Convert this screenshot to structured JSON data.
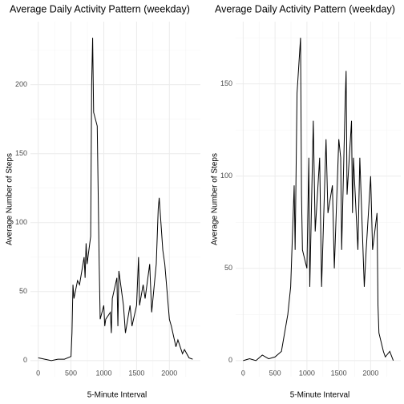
{
  "chart_data": [
    {
      "type": "line",
      "title": "Average Daily Activity Pattern (weekday)",
      "x_label": "5-Minute Interval",
      "y_label": "Average Number of Steps",
      "x": [
        0,
        100,
        200,
        300,
        400,
        500,
        515,
        530,
        545,
        600,
        630,
        700,
        715,
        730,
        745,
        800,
        815,
        830,
        845,
        900,
        915,
        930,
        945,
        1000,
        1015,
        1030,
        1100,
        1115,
        1130,
        1200,
        1215,
        1230,
        1300,
        1330,
        1400,
        1430,
        1500,
        1530,
        1545,
        1600,
        1630,
        1700,
        1730,
        1800,
        1830,
        1845,
        1900,
        1930,
        2000,
        2030,
        2100,
        2130,
        2200,
        2230,
        2300,
        2355
      ],
      "series": [
        {
          "name": "steps",
          "color": "#000000",
          "values": [
            2,
            1,
            0,
            1,
            1,
            3,
            20,
            55,
            45,
            58,
            55,
            75,
            60,
            85,
            70,
            90,
            200,
            234,
            180,
            170,
            120,
            70,
            30,
            40,
            25,
            30,
            35,
            20,
            45,
            60,
            25,
            65,
            40,
            20,
            40,
            25,
            40,
            75,
            40,
            55,
            45,
            70,
            35,
            70,
            110,
            118,
            80,
            70,
            30,
            25,
            10,
            15,
            5,
            8,
            2,
            1
          ]
        }
      ],
      "xlim": [
        -118,
        2473
      ],
      "xticks": [
        0,
        500,
        1000,
        1500,
        2000
      ],
      "ylim": [
        -11.7,
        245.7
      ],
      "yticks": [
        0,
        50,
        100,
        150,
        200
      ],
      "grid": true
    },
    {
      "type": "line",
      "title": "Average Daily Activity Pattern (weekday)",
      "x_label": "5-Minute Interval",
      "y_label": "Average Number of Steps",
      "x": [
        0,
        100,
        200,
        300,
        400,
        500,
        600,
        700,
        745,
        800,
        815,
        845,
        900,
        915,
        930,
        1000,
        1030,
        1045,
        1100,
        1130,
        1200,
        1230,
        1300,
        1330,
        1400,
        1430,
        1500,
        1530,
        1545,
        1600,
        1615,
        1630,
        1700,
        1715,
        1730,
        1800,
        1830,
        1900,
        1930,
        2000,
        2030,
        2100,
        2115,
        2130,
        2200,
        2230,
        2300,
        2355
      ],
      "series": [
        {
          "name": "steps",
          "color": "#000000",
          "values": [
            0,
            1,
            0,
            3,
            1,
            2,
            5,
            25,
            40,
            95,
            60,
            145,
            175,
            90,
            60,
            50,
            110,
            40,
            130,
            70,
            110,
            40,
            120,
            80,
            95,
            50,
            120,
            110,
            60,
            140,
            157,
            90,
            130,
            80,
            110,
            60,
            110,
            40,
            60,
            100,
            60,
            80,
            30,
            15,
            5,
            2,
            5,
            0
          ]
        }
      ],
      "xlim": [
        -118,
        2473
      ],
      "xticks": [
        0,
        500,
        1000,
        1500,
        2000
      ],
      "ylim": [
        -8.75,
        183.75
      ],
      "yticks": [
        0,
        50,
        100,
        150
      ],
      "grid": true
    }
  ]
}
